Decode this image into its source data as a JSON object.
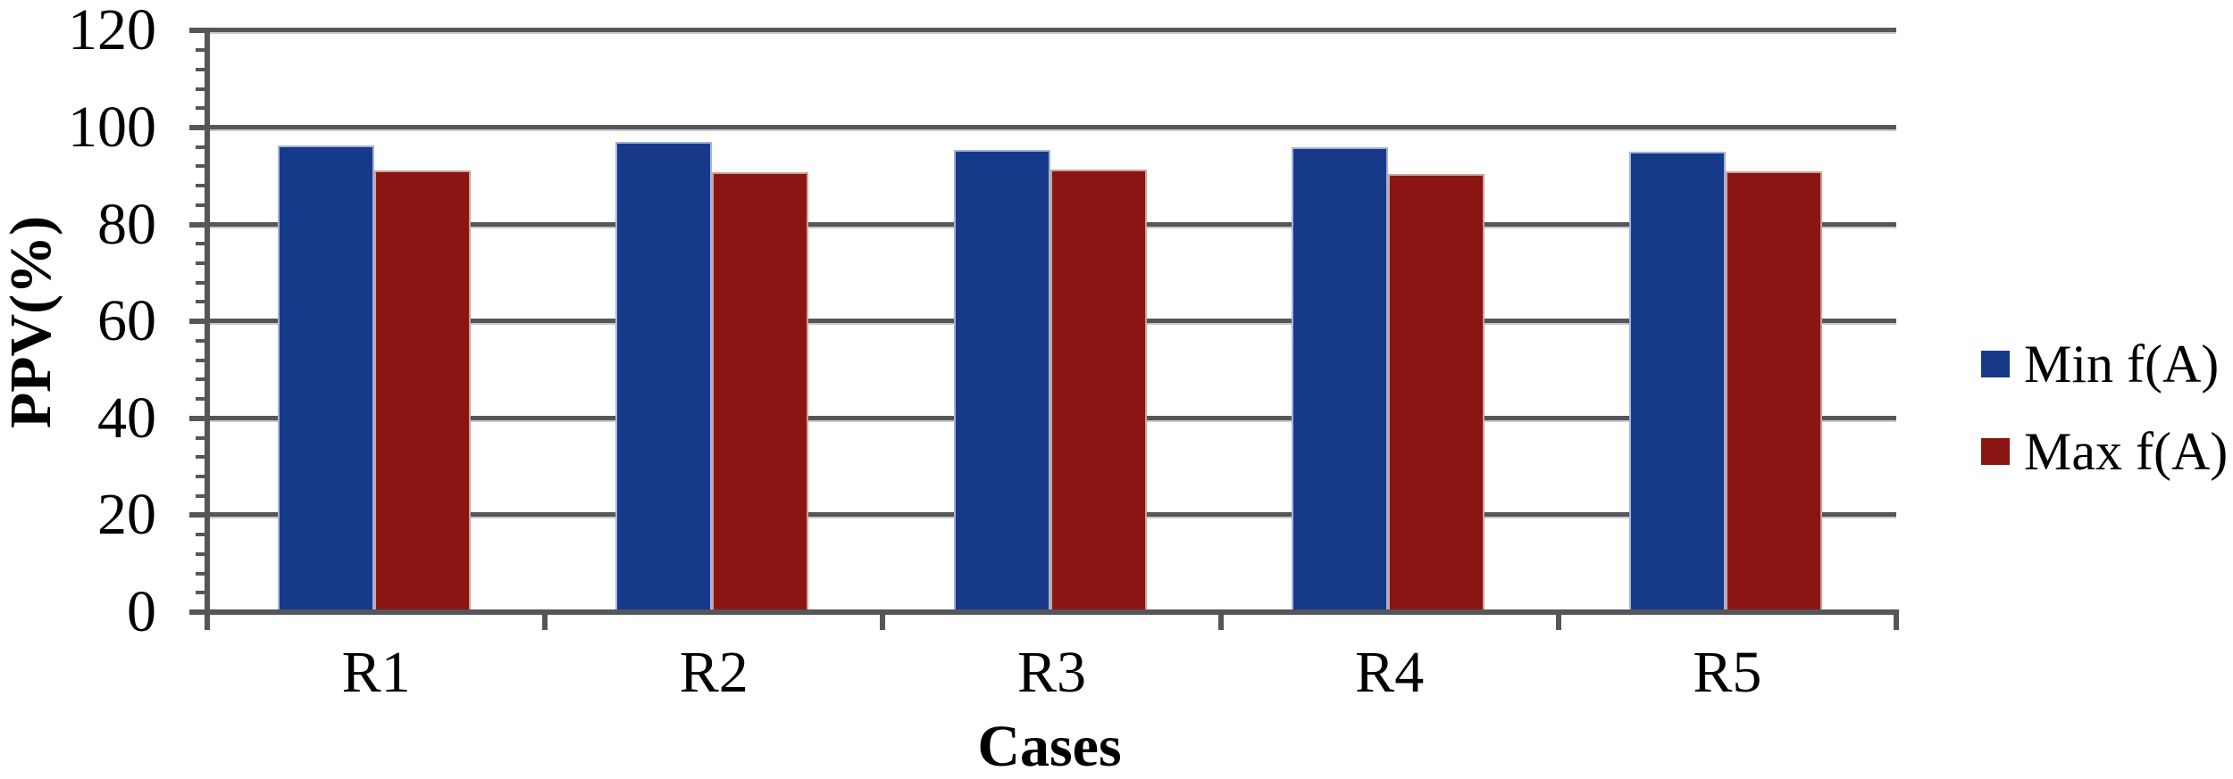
{
  "chart_data": {
    "type": "bar",
    "title": "",
    "categories": [
      "R1",
      "R2",
      "R3",
      "R4",
      "R5"
    ],
    "series": [
      {
        "name": "Min f(A)",
        "color": "#16398A",
        "border_color": "#A5B3D9",
        "values": [
          96.3,
          97.0,
          95.4,
          95.9,
          95.0
        ]
      },
      {
        "name": "Max f(A)",
        "color": "#8B1512",
        "border_color": "#C8A49C",
        "values": [
          91.2,
          90.7,
          91.3,
          90.4,
          90.9
        ]
      }
    ],
    "xlabel": "Cases",
    "ylabel": "PPV(%)",
    "ylim": [
      0,
      120
    ],
    "y_major_step": 20,
    "y_minor_step": 4,
    "grid": true,
    "gridline_color": "#54565A",
    "gridline_shadow_color": "#C9CACC",
    "axis_color": "#54565A",
    "legend_position": "right"
  }
}
